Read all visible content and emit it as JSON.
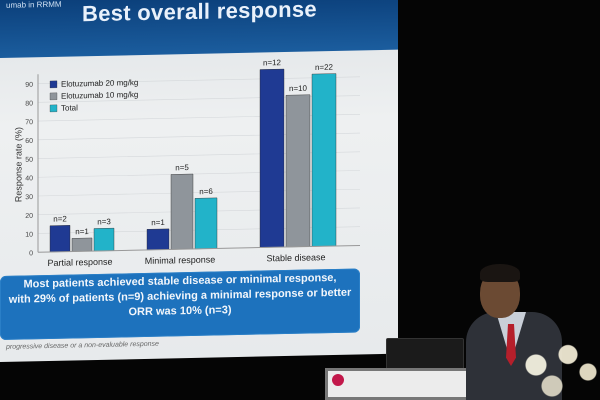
{
  "slide": {
    "subtitle": "umab in RRMM",
    "title": "Best overall response"
  },
  "chart_data": {
    "type": "bar",
    "categories": [
      "Partial response",
      "Minimal response",
      "Stable disease"
    ],
    "series": [
      {
        "name": "Elotuzumab 20 mg/kg",
        "values": [
          14,
          11,
          95
        ],
        "n_labels": [
          "n=2",
          "n=1",
          "n=12"
        ],
        "color": "#1f3a93"
      },
      {
        "name": "Elotuzumab 10 mg/kg",
        "values": [
          7,
          40,
          81
        ],
        "n_labels": [
          "n=1",
          "n=5",
          "n=10"
        ],
        "color": "#8f959b"
      },
      {
        "name": "Total",
        "values": [
          12,
          27,
          92
        ],
        "n_labels": [
          "n=3",
          "n=6",
          "n=22"
        ],
        "color": "#22b3c9"
      }
    ],
    "ylabel": "Response rate (%)",
    "yticks": [
      "0",
      "10",
      "20",
      "30",
      "40",
      "50",
      "60",
      "70",
      "80",
      "90"
    ],
    "ylim": [
      0,
      95
    ],
    "legend_position": "top-left"
  },
  "callout": {
    "line1": "Most patients achieved stable disease or minimal response,",
    "line2": "with 29% of patients (n=9) achieving a minimal response or better",
    "line3": "ORR was 10% (n=3)"
  },
  "footnote": "progressive disease or a non-evaluable response"
}
